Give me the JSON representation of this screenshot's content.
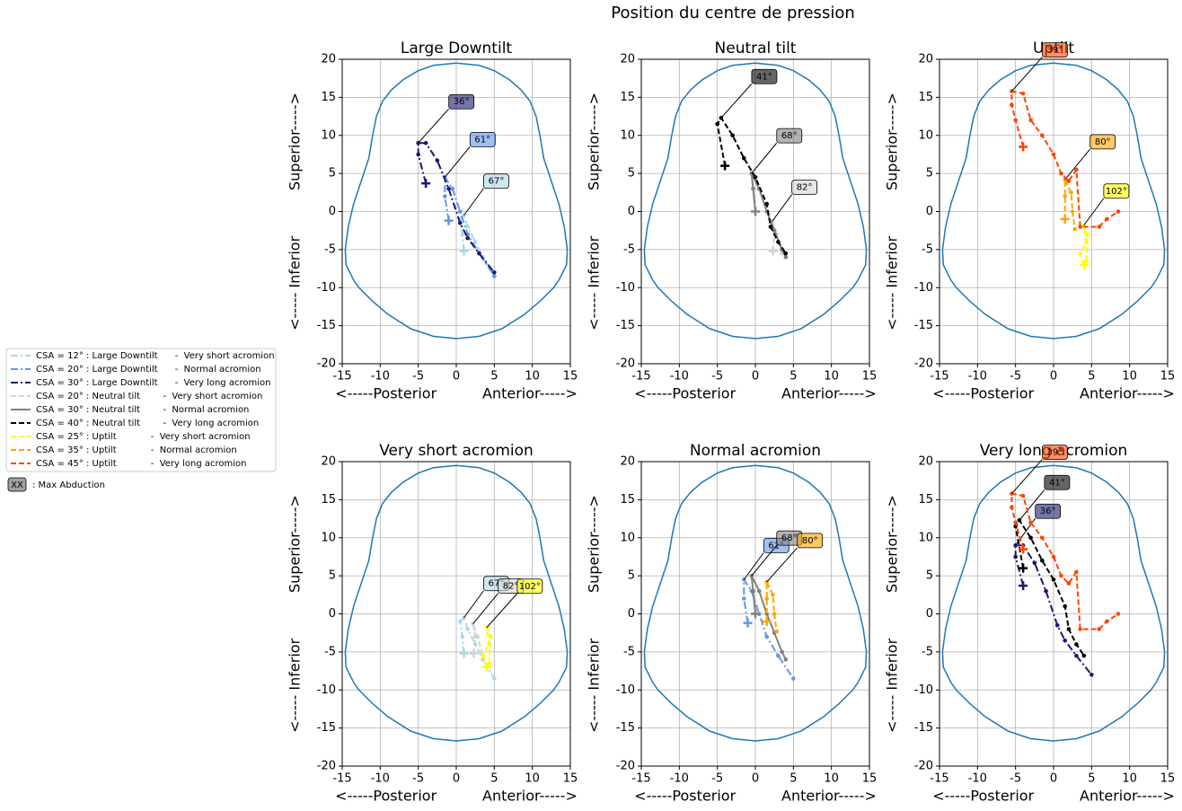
{
  "chart_data": {
    "type": "line",
    "title": "Position du centre de pression",
    "xlabel": "<-----Posterior          Anterior----->",
    "ylabel": "<----- Inferior          Superior----->",
    "xlim": [
      -15,
      15
    ],
    "ylim": [
      -20,
      20
    ],
    "xticks": [
      -15,
      -10,
      -5,
      0,
      5,
      10,
      15
    ],
    "yticks": [
      -20,
      -15,
      -10,
      -5,
      0,
      5,
      10,
      15,
      20
    ],
    "grid": true,
    "note_key": "XX",
    "note_text": ": Max Abduction",
    "outline": {
      "color": "#1f77b4",
      "x": [
        0,
        3,
        5,
        7,
        8.5,
        9.7,
        10.5,
        11,
        11.5,
        12.5,
        13.5,
        14.2,
        14.6,
        14.5,
        13.5,
        12.8,
        11,
        9,
        6,
        3,
        0,
        -3,
        -6,
        -9,
        -11,
        -12.8,
        -13.5,
        -14.5,
        -14.6,
        -14.2,
        -13.5,
        -12.5,
        -11.5,
        -11,
        -10.5,
        -9.7,
        -8.5,
        -7,
        -5,
        -3,
        0
      ],
      "y": [
        19.5,
        19.2,
        18.5,
        17.3,
        16,
        14.5,
        12.5,
        10,
        7,
        4,
        1,
        -2,
        -5,
        -7,
        -9,
        -10,
        -11.8,
        -13.5,
        -15.4,
        -16.4,
        -16.7,
        -16.4,
        -15.4,
        -13.5,
        -11.8,
        -10,
        -9,
        -7,
        -5,
        -2,
        1,
        4,
        7,
        10,
        12.5,
        14.5,
        16,
        17.3,
        18.5,
        19.2,
        19.5
      ]
    },
    "panels": [
      {
        "title": "Large Downtilt"
      },
      {
        "title": "Neutral tilt"
      },
      {
        "title": "Uptilt"
      },
      {
        "title": "Very short acromion"
      },
      {
        "title": "Normal acromion"
      },
      {
        "title": "Very long acromion"
      }
    ],
    "series": [
      {
        "name": "CSA = 12° : Large Downtilt      -  Very short acromion",
        "color": "#add8e6",
        "dash": "dashdot",
        "max_label": "67°",
        "x": [
          1,
          0.8,
          0.5,
          1,
          1.5,
          2.5,
          3.5,
          5
        ],
        "y": [
          -5.2,
          -3,
          -1,
          -0.5,
          -2,
          -4,
          -6,
          -8.5
        ]
      },
      {
        "name": "CSA = 20° : Large Downtilt      -  Normal acromion",
        "color": "#6495ed",
        "dash": "dashdot",
        "max_label": "61°",
        "x": [
          -1,
          -1.5,
          -1.5,
          -0.5,
          0.5,
          1.5,
          3,
          5
        ],
        "y": [
          -1.2,
          2,
          4.5,
          3,
          0,
          -3,
          -5.5,
          -8.5
        ]
      },
      {
        "name": "CSA = 30° : Large Downtilt      -  Very long acromion",
        "color": "#191970",
        "dash": "dashdot",
        "max_label": "36°",
        "x": [
          -4,
          -5,
          -5,
          -4,
          -2.5,
          -1,
          0.5,
          1.5,
          3,
          5
        ],
        "y": [
          3.7,
          7.5,
          9,
          9,
          6.7,
          3,
          -1.5,
          -3.5,
          -5.5,
          -8
        ]
      },
      {
        "name": "CSA = 20° : Neutral tilt        -  Very short acromion",
        "color": "#d3d3d3",
        "dash": "dashed",
        "max_label": "82°",
        "x": [
          2.3,
          2.5,
          2.2,
          2.8,
          3.5
        ],
        "y": [
          -5.2,
          -3,
          -1.3,
          -3,
          -5.5
        ]
      },
      {
        "name": "CSA = 30° : Neutral tilt        -  Normal acromion",
        "color": "#808080",
        "dash": "solid",
        "max_label": "68°",
        "x": [
          0,
          -0.3,
          -0.5,
          0.5,
          1.5,
          2.5,
          3.5,
          4
        ],
        "y": [
          0,
          3,
          5,
          3,
          0,
          -2.5,
          -5,
          -6
        ]
      },
      {
        "name": "CSA = 40° : Neutral tilt        -  Very long acromion",
        "color": "#000000",
        "dash": "dashed",
        "max_label": "41°",
        "x": [
          -4,
          -5,
          -4.5,
          -3,
          -1.5,
          0,
          1.5,
          2,
          3,
          4
        ],
        "y": [
          6,
          11.5,
          12.3,
          10,
          7,
          4.5,
          1,
          -2,
          -4,
          -5.5
        ]
      },
      {
        "name": "CSA = 25° : Uptilt            -  Very short acromion",
        "color": "#ffff00",
        "dash": "dashed",
        "max_label": "102°",
        "x": [
          4,
          3.5,
          4.3,
          4,
          4.5,
          4.3
        ],
        "y": [
          -7,
          -5.5,
          -4,
          -1.8,
          -3,
          -6.5
        ]
      },
      {
        "name": "CSA = 35° : Uptilt            -  Normal acromion",
        "color": "#ffa500",
        "dash": "dashed",
        "max_label": "80°",
        "x": [
          1.5,
          1.5,
          1.5,
          2.3,
          2.5,
          2.8
        ],
        "y": [
          -1,
          2,
          4.2,
          2.5,
          0,
          -2.3
        ]
      },
      {
        "name": "CSA = 45° : Uptilt            -  Very long acromion",
        "color": "#ff4500",
        "dash": "dashed",
        "max_label": "39°",
        "x": [
          -4,
          -5,
          -5.5,
          -5.5,
          -4,
          -3,
          -1.5,
          0,
          1,
          2,
          3,
          3.5,
          6,
          7,
          8.5
        ],
        "y": [
          8.5,
          12,
          14,
          15.8,
          15.5,
          12,
          10,
          7.5,
          5,
          4,
          5.5,
          -2,
          -2,
          -1,
          0
        ]
      }
    ]
  }
}
